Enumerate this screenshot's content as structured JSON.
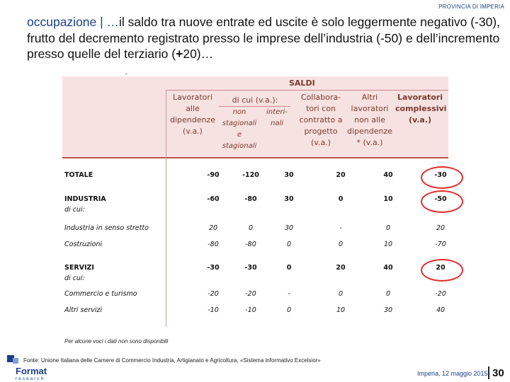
{
  "header": {
    "top_label": "PROVINCIA DI IMPERIA",
    "title_lead": "occupazione | …",
    "title_rest": "il saldo tra nuove entrate ed uscite è solo leggermente negativo (-30), frutto del decremento registrato presso le imprese dell’industria (-50) e dell’incremento presso quelle del terziario (",
    "title_bold": "+",
    "title_end": "20)…"
  },
  "table": {
    "saldi_label": "SALDI",
    "columns": {
      "dipendenze": "Lavoratori alle dipendenze (v.a.)",
      "di_cui": "di cui (v.a.):",
      "non_stagionali": "non stagionali e stagionali",
      "interinali": "interi-nali",
      "collaboratori": "Collabora-tori con contratto a progetto (v.a.)",
      "altri": "Altri lavoratori non alle dipendenze * (v.a.)",
      "complessivi": "Lavoratori complessivi (v.a.)"
    },
    "rows": [
      {
        "label": "TOTALE",
        "values": [
          "-90",
          "-120",
          "30",
          "20",
          "40",
          "-30"
        ]
      },
      {
        "label": "INDUSTRIA",
        "sub": "di cui:",
        "values": [
          "-60",
          "-80",
          "30",
          "0",
          "10",
          "-50"
        ]
      },
      {
        "label": "Industria in senso stretto",
        "values": [
          "20",
          "0",
          "30",
          "-",
          "0",
          "20"
        ]
      },
      {
        "label": "Costruzioni",
        "values": [
          "-80",
          "-80",
          "0",
          "0",
          "10",
          "-70"
        ]
      },
      {
        "label": "SERVIZI",
        "sub": "di cui:",
        "values": [
          "-30",
          "-30",
          "0",
          "20",
          "40",
          "20"
        ]
      },
      {
        "label": "Commercio e turismo",
        "values": [
          "-20",
          "-20",
          "-",
          "0",
          "0",
          "-20"
        ]
      },
      {
        "label": "Altri servizi",
        "values": [
          "-10",
          "-10",
          "0",
          "10",
          "30",
          "40"
        ]
      }
    ],
    "note": "Per alcune voci i dati non sono disponibili"
  },
  "footer": {
    "source": "Fonte: Unione Italiana delle Camere di Commercio Industria, Artigianato e Agricoltura, «Sistema informativo Excelsior»",
    "logo_text": "Format",
    "logo_sub": "research",
    "date": "Imperia, 12 maggio 2015",
    "page": "30"
  },
  "colors": {
    "accent": "#1a3f8a",
    "header_bg": "#f7e2e2",
    "highlight": "#e52b2b",
    "header_text": "#7a3b2e"
  }
}
